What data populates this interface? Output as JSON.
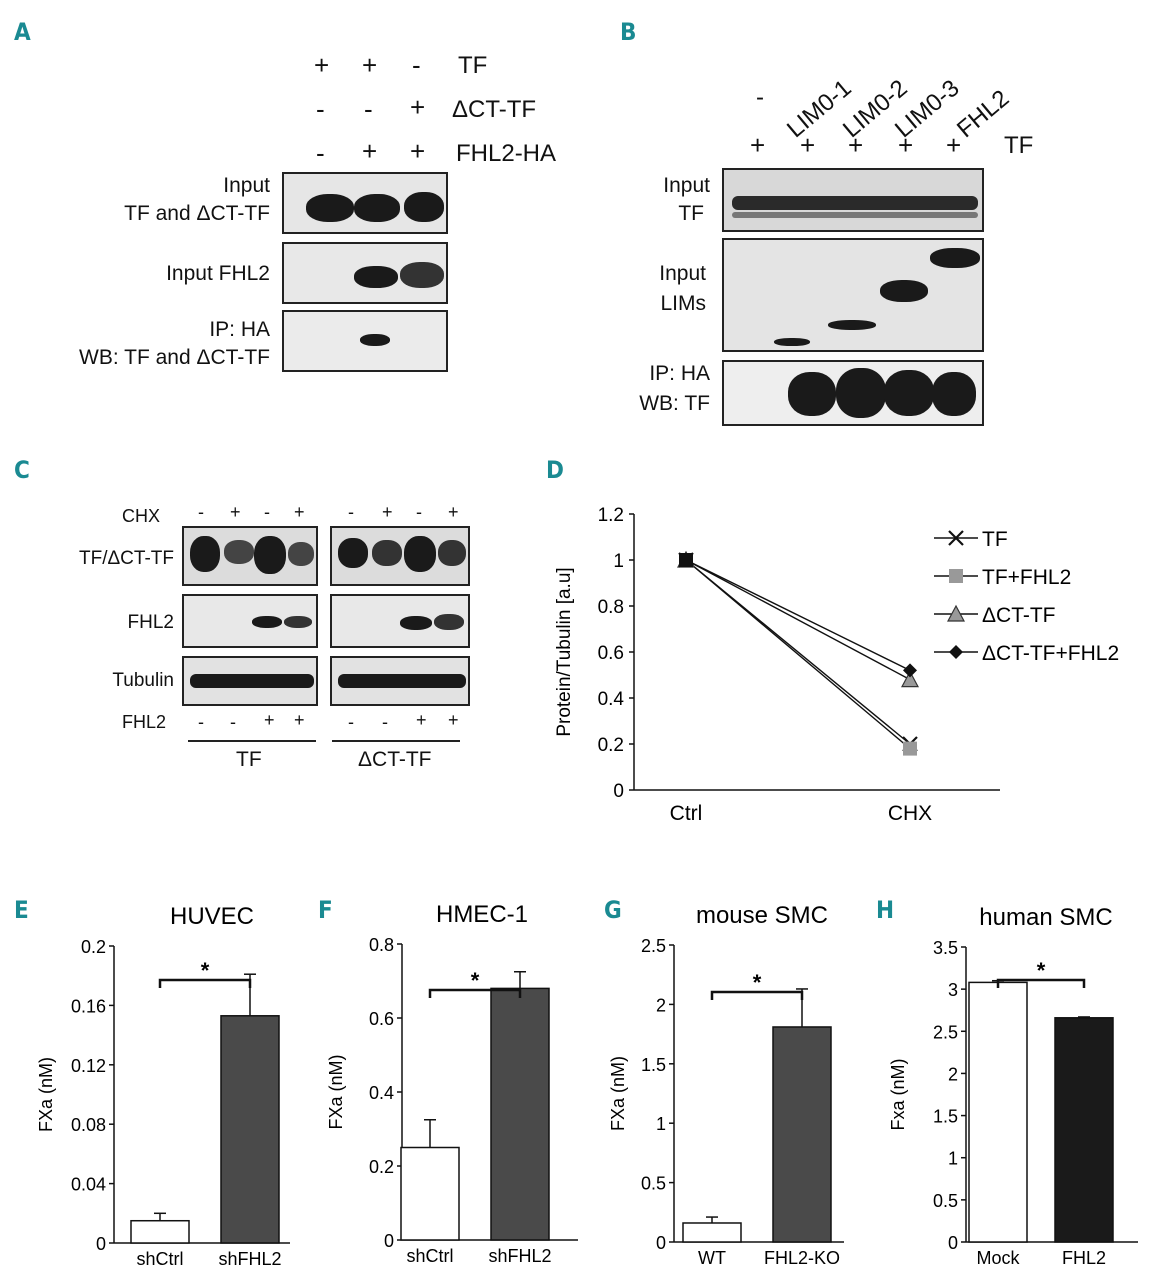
{
  "panels": {
    "A": {
      "letter": "A",
      "header_rows": [
        {
          "label": "TF",
          "signs": [
            "+",
            "+",
            "-"
          ]
        },
        {
          "label": "ΔCT-TF",
          "signs": [
            "-",
            "-",
            "+"
          ]
        },
        {
          "label": "FHL2-HA",
          "signs": [
            "-",
            "+",
            "+"
          ]
        }
      ],
      "blot_labels": [
        [
          "Input",
          "TF and ΔCT-TF"
        ],
        [
          "Input FHL2"
        ],
        [
          "IP: HA",
          "WB: TF and ΔCT-TF"
        ]
      ]
    },
    "B": {
      "letter": "B",
      "lanes": [
        "-",
        "LIM0-1",
        "LIM0-2",
        "LIM0-3",
        "FHL2"
      ],
      "tf_row": {
        "label": "TF",
        "signs": [
          "+",
          "+",
          "+",
          "+",
          "+"
        ]
      },
      "blot_labels": [
        [
          "Input",
          "TF"
        ],
        [
          "Input",
          "LIMs"
        ],
        [
          "IP: HA",
          "WB: TF"
        ]
      ]
    },
    "C": {
      "letter": "C",
      "chx_label": "CHX",
      "chx_signs": [
        "-",
        "+",
        "-",
        "+",
        "-",
        "+",
        "-",
        "+"
      ],
      "row_labels": [
        "TF/ΔCT-TF",
        "FHL2",
        "Tubulin"
      ],
      "fhl2_label": "FHL2",
      "fhl2_signs": [
        "-",
        "-",
        "+",
        "+",
        "-",
        "-",
        "+",
        "+"
      ],
      "group_labels": [
        "TF",
        "ΔCT-TF"
      ]
    },
    "D": {
      "letter": "D"
    },
    "E": {
      "letter": "E"
    },
    "F": {
      "letter": "F"
    },
    "G": {
      "letter": "G"
    },
    "H": {
      "letter": "H"
    }
  },
  "chart_data": [
    {
      "panel": "D",
      "type": "line",
      "title": "",
      "xlabel": "",
      "ylabel": "Protein/Tubulin [a.u]",
      "categories": [
        "Ctrl",
        "CHX"
      ],
      "ylim": [
        0,
        1.2
      ],
      "yticks": [
        "0",
        "0.2",
        "0.4",
        "0.6",
        "0.8",
        "1",
        "1.2"
      ],
      "legend_position": "right",
      "series": [
        {
          "name": "TF",
          "values": [
            1,
            0.2
          ],
          "marker": "x",
          "color": "#111111"
        },
        {
          "name": "TF+FHL2",
          "values": [
            1,
            0.18
          ],
          "marker": "square",
          "color": "#999999"
        },
        {
          "name": "ΔCT-TF",
          "values": [
            1,
            0.48
          ],
          "marker": "triangle",
          "color": "#999999"
        },
        {
          "name": "ΔCT-TF+FHL2",
          "values": [
            1,
            0.52
          ],
          "marker": "diamond",
          "color": "#111111"
        }
      ]
    },
    {
      "panel": "E",
      "type": "bar",
      "title": "HUVEC",
      "ylabel": "FXa (nM)",
      "categories": [
        "shCtrl",
        "shFHL2"
      ],
      "values": [
        0.015,
        0.153
      ],
      "errors": [
        0.005,
        0.028
      ],
      "colors": [
        "#ffffff",
        "#4a4a4a"
      ],
      "ylim": [
        0,
        0.2
      ],
      "yticks": [
        "0",
        "0.04",
        "0.08",
        "0.12",
        "0.16",
        "0.2"
      ],
      "significance": "*"
    },
    {
      "panel": "F",
      "type": "bar",
      "title": "HMEC-1",
      "ylabel": "FXa (nM)",
      "categories": [
        "shCtrl",
        "shFHL2"
      ],
      "values": [
        0.25,
        0.68
      ],
      "errors": [
        0.075,
        0.045
      ],
      "colors": [
        "#ffffff",
        "#4a4a4a"
      ],
      "ylim": [
        0,
        0.8
      ],
      "yticks": [
        "0",
        "0.2",
        "0.4",
        "0.6",
        "0.8"
      ],
      "significance": "*"
    },
    {
      "panel": "G",
      "type": "bar",
      "title": "mouse SMC",
      "ylabel": "FXa (nM)",
      "categories": [
        "WT",
        "FHL2-KO"
      ],
      "values": [
        0.16,
        1.81
      ],
      "errors": [
        0.05,
        0.32
      ],
      "colors": [
        "#ffffff",
        "#4a4a4a"
      ],
      "ylim": [
        0,
        2.5
      ],
      "yticks": [
        "0",
        "0.5",
        "1",
        "1.5",
        "2",
        "2.5"
      ],
      "significance": "*"
    },
    {
      "panel": "H",
      "type": "bar",
      "title": "human SMC",
      "ylabel": "Fxa (nM)",
      "categories": [
        "Mock",
        "FHL2"
      ],
      "values": [
        3.08,
        2.66
      ],
      "errors": [
        0.02,
        0.01
      ],
      "colors": [
        "#ffffff",
        "#1a1a1a"
      ],
      "ylim": [
        0,
        3.5
      ],
      "yticks": [
        "0",
        "0.5",
        "1",
        "1.5",
        "2",
        "2.5",
        "3",
        "3.5"
      ],
      "significance": "*"
    }
  ]
}
